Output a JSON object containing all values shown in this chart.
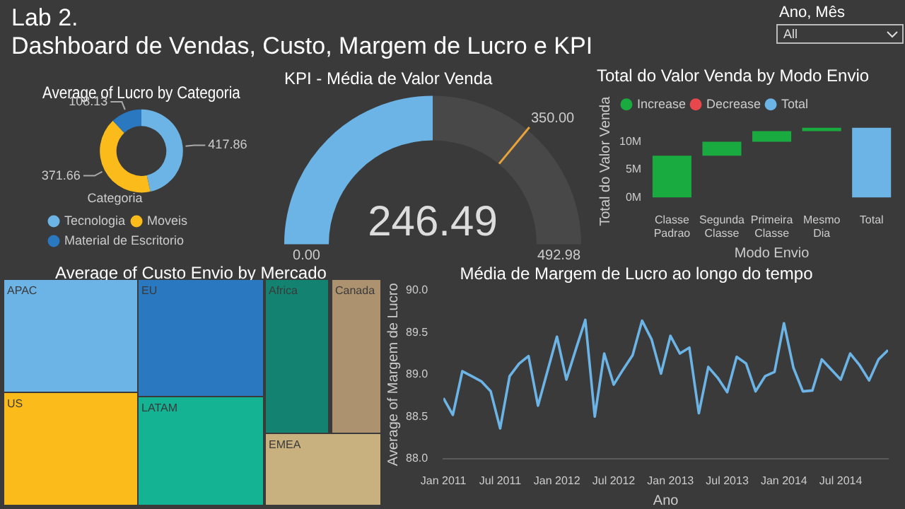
{
  "chart_data": [
    {
      "type": "other",
      "title": "Lab 2.",
      "subtitle": "Dashboard de Vendas, Custo, Margem de Lucro e KPI",
      "annotations": [
        "Ano, Mês",
        "All"
      ]
    },
    {
      "type": "donut",
      "title": "Average of Lucro by Categoria",
      "legend_title": "Categoria",
      "legend": "bottom",
      "data_labels": true,
      "categories": [
        "Tecnologia",
        "Moveis",
        "Material de Escritorio"
      ],
      "values": [
        417.86,
        371.66,
        108.13
      ],
      "colors": [
        "#6cb4e6",
        "#fbbb1a",
        "#2a78c0"
      ]
    },
    {
      "type": "donut",
      "title": "KPI - Média de Valor Venda",
      "categories": [
        null,
        null
      ],
      "values": [
        246.49,
        246.49
      ],
      "colors": [
        "#6cb4e6",
        "#484848"
      ],
      "value_labels": [
        "246.49",
        null
      ],
      "annotations": [
        "0.00",
        "492.98",
        "350.00"
      ]
    },
    {
      "type": "bar",
      "title": "Total do Valor Venda by Modo Envio",
      "xlabel": "Modo Envio",
      "ylabel": "Total do Valor Venda",
      "legend": "top left",
      "grid": false,
      "categories": [
        "Classe Padrao",
        "Segunda Classe",
        "Primeira Classe",
        "Mesmo Dia",
        "Total"
      ],
      "ylim": [
        0,
        13000000
      ],
      "yticks": [
        {
          "value": 0,
          "label": "0M"
        },
        {
          "value": 5000000,
          "label": "5M"
        },
        {
          "value": 10000000,
          "label": "10M"
        }
      ],
      "series": [
        {
          "name": "Increase",
          "color": "#1aab40",
          "base": [
            0,
            7500000,
            10000000,
            11900000,
            null
          ],
          "values": [
            7500000,
            2500000,
            1900000,
            600000,
            null
          ]
        },
        {
          "name": "Decrease",
          "color": "#e8474c",
          "values": [
            null,
            null,
            null,
            null,
            null
          ]
        },
        {
          "name": "Total",
          "color": "#6cb4e6",
          "values": [
            null,
            null,
            null,
            null,
            12500000
          ]
        }
      ]
    },
    {
      "type": "other",
      "title": "Average of Custo Envio by Mercado",
      "categories": [
        "APAC",
        "US",
        "EU",
        "LATAM",
        "Africa",
        "Canada",
        "EMEA"
      ],
      "colors": [
        "#6cb4e6",
        "#fbbb1a",
        "#2a78c0",
        "#13b394",
        "#138270",
        "#ad9270",
        "#c8b07f"
      ]
    },
    {
      "type": "line",
      "title": "Média de Margem de Lucro ao longo do tempo",
      "xlabel": "Ano",
      "ylabel": "Average of Margem de Lucro",
      "grid": false,
      "marker": "none",
      "color": "#6cb4e6",
      "xlim": [
        "2011-01",
        "2014-12"
      ],
      "ylim": [
        88,
        90
      ],
      "yticks": [
        {
          "value": 88,
          "label": "88.0"
        },
        {
          "value": 88.5,
          "label": "88.5"
        },
        {
          "value": 89,
          "label": "89.0"
        },
        {
          "value": 89.5,
          "label": "89.5"
        },
        {
          "value": 90,
          "label": "90.0"
        }
      ],
      "xticks": [
        {
          "value": "2011-01",
          "label": "Jan 2011"
        },
        {
          "value": "2011-07",
          "label": "Jul 2011"
        },
        {
          "value": "2012-01",
          "label": "Jan 2012"
        },
        {
          "value": "2012-07",
          "label": "Jul 2012"
        },
        {
          "value": "2013-01",
          "label": "Jan 2013"
        },
        {
          "value": "2013-07",
          "label": "Jul 2013"
        },
        {
          "value": "2014-01",
          "label": "Jan 2014"
        },
        {
          "value": "2014-07",
          "label": "Jul 2014"
        }
      ],
      "x": [
        "2011-01",
        "2011-02",
        "2011-03",
        "2011-04",
        "2011-05",
        "2011-06",
        "2011-07",
        "2011-08",
        "2011-09",
        "2011-10",
        "2011-11",
        "2011-12",
        "2012-01",
        "2012-02",
        "2012-03",
        "2012-04",
        "2012-05",
        "2012-06",
        "2012-07",
        "2012-08",
        "2012-09",
        "2012-10",
        "2012-11",
        "2012-12",
        "2013-01",
        "2013-02",
        "2013-03",
        "2013-04",
        "2013-05",
        "2013-06",
        "2013-07",
        "2013-08",
        "2013-09",
        "2013-10",
        "2013-11",
        "2013-12",
        "2014-01",
        "2014-02",
        "2014-03",
        "2014-04",
        "2014-05",
        "2014-06",
        "2014-07",
        "2014-08",
        "2014-09",
        "2014-10",
        "2014-11",
        "2014-12"
      ],
      "values": [
        88.72,
        88.52,
        89.04,
        88.98,
        88.92,
        88.8,
        88.36,
        88.98,
        89.13,
        89.22,
        88.63,
        89.04,
        89.45,
        88.94,
        89.3,
        89.65,
        88.5,
        89.25,
        88.88,
        89.06,
        89.23,
        89.64,
        89.42,
        89.01,
        89.46,
        89.25,
        89.32,
        88.54,
        89.09,
        88.96,
        88.79,
        89.21,
        89.13,
        88.8,
        88.98,
        89.03,
        89.61,
        89.08,
        88.8,
        88.81,
        89.18,
        89.06,
        88.94,
        89.25,
        89.11,
        88.93,
        89.18,
        89.29
      ]
    }
  ]
}
